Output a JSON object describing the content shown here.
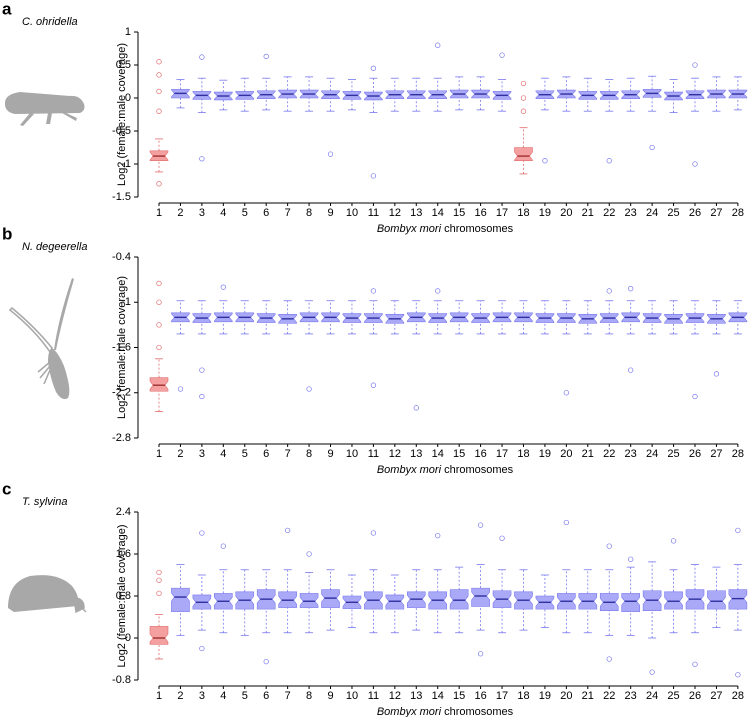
{
  "chart_data": [
    {
      "type": "box",
      "panel_label": "a",
      "species": "C. ohridella",
      "ylabel": "Log2 (female:male coverage)",
      "xlabel_italic": "Bombyx mori",
      "xlabel": "chromosomes",
      "categories": [
        1,
        2,
        3,
        4,
        5,
        6,
        7,
        8,
        9,
        10,
        11,
        12,
        13,
        14,
        15,
        16,
        17,
        18,
        19,
        20,
        21,
        22,
        23,
        24,
        25,
        26,
        27,
        28
      ],
      "color": "#a9a9f7",
      "edge_color": "#7777ee",
      "highlight_color": "#f5a0a0",
      "highlight_edge_color": "#e06a6a",
      "highlight_categories": [
        1,
        18
      ],
      "median": [
        -0.88,
        0.07,
        0.04,
        0.03,
        0.04,
        0.05,
        0.06,
        0.06,
        0.05,
        0.04,
        0.03,
        0.05,
        0.05,
        0.05,
        0.06,
        0.06,
        0.04,
        -0.88,
        0.05,
        0.06,
        0.04,
        0.04,
        0.05,
        0.07,
        0.03,
        0.05,
        0.06,
        0.06
      ],
      "q1": [
        -0.95,
        0.0,
        -0.02,
        -0.03,
        -0.02,
        -0.01,
        0.0,
        0.0,
        -0.01,
        -0.02,
        -0.03,
        -0.01,
        -0.01,
        -0.01,
        0.0,
        0.0,
        -0.02,
        -0.95,
        -0.01,
        0.0,
        -0.02,
        -0.02,
        -0.01,
        0.01,
        -0.03,
        -0.01,
        0.0,
        0.0
      ],
      "q3": [
        -0.8,
        0.13,
        0.1,
        0.09,
        0.1,
        0.11,
        0.12,
        0.12,
        0.11,
        0.1,
        0.09,
        0.11,
        0.11,
        0.11,
        0.12,
        0.12,
        0.1,
        -0.75,
        0.11,
        0.12,
        0.1,
        0.1,
        0.11,
        0.13,
        0.09,
        0.11,
        0.12,
        0.12
      ],
      "low": [
        -1.12,
        -0.15,
        -0.22,
        -0.18,
        -0.2,
        -0.18,
        -0.2,
        -0.2,
        -0.2,
        -0.18,
        -0.22,
        -0.2,
        -0.2,
        -0.2,
        -0.18,
        -0.18,
        -0.2,
        -1.15,
        -0.18,
        -0.2,
        -0.2,
        -0.2,
        -0.2,
        -0.2,
        -0.22,
        -0.2,
        -0.2,
        -0.18
      ],
      "high": [
        -0.62,
        0.28,
        0.3,
        0.27,
        0.3,
        0.3,
        0.32,
        0.32,
        0.3,
        0.28,
        0.3,
        0.3,
        0.3,
        0.3,
        0.32,
        0.32,
        0.28,
        -0.45,
        0.3,
        0.32,
        0.3,
        0.28,
        0.3,
        0.33,
        0.28,
        0.3,
        0.32,
        0.32
      ],
      "outliers": {
        "x": [
          1,
          1,
          1,
          1,
          1,
          3,
          3,
          6,
          9,
          11,
          11,
          14,
          17,
          18,
          18,
          18,
          19,
          22,
          24,
          26,
          26
        ],
        "values": [
          0.55,
          0.35,
          0.1,
          -0.2,
          -1.3,
          0.62,
          -0.92,
          0.63,
          -0.85,
          -1.18,
          0.45,
          0.8,
          0.65,
          0.22,
          0.0,
          -0.2,
          -0.95,
          -0.95,
          -0.75,
          -1.0,
          0.5
        ]
      },
      "ylim": [
        -1.5,
        1
      ],
      "yticks": [
        1,
        0.5,
        0,
        -0.5,
        -1,
        -1.5
      ]
    },
    {
      "type": "box",
      "panel_label": "b",
      "species": "N. degeerella",
      "ylabel": "Log2 (female:male coverage)",
      "xlabel_italic": "Bombyx mori",
      "xlabel": "chromosomes",
      "categories": [
        1,
        2,
        3,
        4,
        5,
        6,
        7,
        8,
        9,
        10,
        11,
        12,
        13,
        14,
        15,
        16,
        17,
        18,
        19,
        20,
        21,
        22,
        23,
        24,
        25,
        26,
        27,
        28
      ],
      "color": "#a9a9f7",
      "edge_color": "#7777ee",
      "highlight_color": "#f5a0a0",
      "highlight_edge_color": "#e06a6a",
      "highlight_categories": [
        1
      ],
      "median": [
        -2.1,
        -1.2,
        -1.21,
        -1.2,
        -1.2,
        -1.21,
        -1.22,
        -1.2,
        -1.2,
        -1.21,
        -1.21,
        -1.22,
        -1.2,
        -1.21,
        -1.2,
        -1.21,
        -1.2,
        -1.2,
        -1.21,
        -1.21,
        -1.22,
        -1.21,
        -1.2,
        -1.21,
        -1.22,
        -1.21,
        -1.22,
        -1.2
      ],
      "q1": [
        -2.18,
        -1.26,
        -1.27,
        -1.26,
        -1.26,
        -1.27,
        -1.28,
        -1.26,
        -1.26,
        -1.27,
        -1.27,
        -1.28,
        -1.26,
        -1.27,
        -1.26,
        -1.27,
        -1.26,
        -1.26,
        -1.27,
        -1.27,
        -1.28,
        -1.27,
        -1.26,
        -1.27,
        -1.28,
        -1.27,
        -1.28,
        -1.26
      ],
      "q3": [
        -2.0,
        -1.14,
        -1.15,
        -1.14,
        -1.14,
        -1.15,
        -1.16,
        -1.14,
        -1.14,
        -1.15,
        -1.15,
        -1.16,
        -1.14,
        -1.15,
        -1.14,
        -1.15,
        -1.14,
        -1.14,
        -1.15,
        -1.15,
        -1.16,
        -1.15,
        -1.14,
        -1.15,
        -1.16,
        -1.15,
        -1.16,
        -1.14
      ],
      "low": [
        -2.45,
        -1.42,
        -1.42,
        -1.42,
        -1.42,
        -1.42,
        -1.42,
        -1.42,
        -1.42,
        -1.42,
        -1.42,
        -1.42,
        -1.42,
        -1.42,
        -1.42,
        -1.42,
        -1.42,
        -1.42,
        -1.42,
        -1.42,
        -1.42,
        -1.42,
        -1.42,
        -1.42,
        -1.42,
        -1.42,
        -1.42,
        -1.42
      ],
      "high": [
        -1.75,
        -0.98,
        -0.98,
        -0.98,
        -0.98,
        -0.98,
        -0.98,
        -0.98,
        -0.98,
        -0.98,
        -0.98,
        -0.98,
        -0.98,
        -0.98,
        -0.98,
        -0.98,
        -0.98,
        -0.98,
        -0.98,
        -0.98,
        -0.98,
        -0.98,
        -0.98,
        -0.98,
        -0.98,
        -0.98,
        -0.98,
        -0.98
      ],
      "outliers": {
        "x": [
          1,
          1,
          1,
          1,
          2,
          3,
          3,
          4,
          8,
          11,
          11,
          13,
          14,
          20,
          22,
          23,
          23,
          26,
          27
        ],
        "values": [
          -0.75,
          -1.0,
          -1.3,
          -1.6,
          -2.15,
          -2.25,
          -1.9,
          -0.8,
          -2.15,
          -0.85,
          -2.1,
          -2.4,
          -0.85,
          -2.2,
          -0.85,
          -0.82,
          -1.9,
          -2.25,
          -1.95
        ]
      },
      "ylim": [
        -2.8,
        -0.4
      ],
      "yticks": [
        -0.4,
        -1,
        -1.6,
        -2.2,
        -2.8
      ]
    },
    {
      "type": "box",
      "panel_label": "c",
      "species": "T. sylvina",
      "ylabel": "Log2 (female:male coverage)",
      "xlabel_italic": "Bombyx mori",
      "xlabel": "chromosomes",
      "categories": [
        1,
        2,
        3,
        4,
        5,
        6,
        7,
        8,
        9,
        10,
        11,
        12,
        13,
        14,
        15,
        16,
        17,
        18,
        19,
        20,
        21,
        22,
        23,
        24,
        25,
        26,
        27,
        28
      ],
      "color": "#a9a9f7",
      "edge_color": "#7777ee",
      "highlight_color": "#f5a0a0",
      "highlight_edge_color": "#e06a6a",
      "highlight_categories": [
        1
      ],
      "median": [
        0.0,
        0.78,
        0.68,
        0.7,
        0.72,
        0.74,
        0.72,
        0.7,
        0.76,
        0.68,
        0.72,
        0.7,
        0.74,
        0.72,
        0.72,
        0.8,
        0.74,
        0.72,
        0.68,
        0.7,
        0.7,
        0.68,
        0.7,
        0.72,
        0.7,
        0.74,
        0.7,
        0.75
      ],
      "q1": [
        -0.12,
        0.5,
        0.55,
        0.55,
        0.55,
        0.55,
        0.58,
        0.58,
        0.58,
        0.56,
        0.55,
        0.55,
        0.58,
        0.55,
        0.55,
        0.6,
        0.58,
        0.55,
        0.55,
        0.55,
        0.55,
        0.52,
        0.5,
        0.52,
        0.55,
        0.55,
        0.55,
        0.55
      ],
      "q3": [
        0.22,
        0.95,
        0.82,
        0.85,
        0.88,
        0.92,
        0.88,
        0.85,
        0.92,
        0.8,
        0.88,
        0.82,
        0.88,
        0.88,
        0.92,
        0.95,
        0.9,
        0.88,
        0.8,
        0.85,
        0.85,
        0.85,
        0.85,
        0.9,
        0.88,
        0.92,
        0.9,
        0.92
      ],
      "low": [
        -0.4,
        0.05,
        0.15,
        0.1,
        0.05,
        0.1,
        0.1,
        0.1,
        0.15,
        0.2,
        0.1,
        0.1,
        0.15,
        0.1,
        0.1,
        0.15,
        0.1,
        0.15,
        0.2,
        0.1,
        0.1,
        0.05,
        0.05,
        0.0,
        0.1,
        0.1,
        0.2,
        0.15
      ],
      "high": [
        0.45,
        1.4,
        1.2,
        1.3,
        1.3,
        1.3,
        1.3,
        1.25,
        1.3,
        1.2,
        1.3,
        1.2,
        1.3,
        1.3,
        1.35,
        1.4,
        1.3,
        1.3,
        1.2,
        1.3,
        1.3,
        1.3,
        1.35,
        1.45,
        1.3,
        1.4,
        1.35,
        1.4
      ],
      "outliers": {
        "x": [
          1,
          1,
          1,
          3,
          3,
          4,
          6,
          7,
          8,
          11,
          14,
          16,
          16,
          17,
          20,
          22,
          22,
          23,
          24,
          25,
          26,
          28,
          28
        ],
        "values": [
          1.25,
          1.1,
          0.85,
          2.0,
          -0.2,
          1.75,
          -0.45,
          2.05,
          1.6,
          2.0,
          1.95,
          2.15,
          -0.3,
          1.9,
          2.2,
          1.75,
          -0.4,
          1.5,
          -0.65,
          1.85,
          -0.5,
          2.05,
          -0.7
        ]
      },
      "ylim": [
        -0.8,
        2.4
      ],
      "yticks": [
        2.4,
        1.6,
        0.8,
        0,
        -0.8
      ]
    }
  ]
}
